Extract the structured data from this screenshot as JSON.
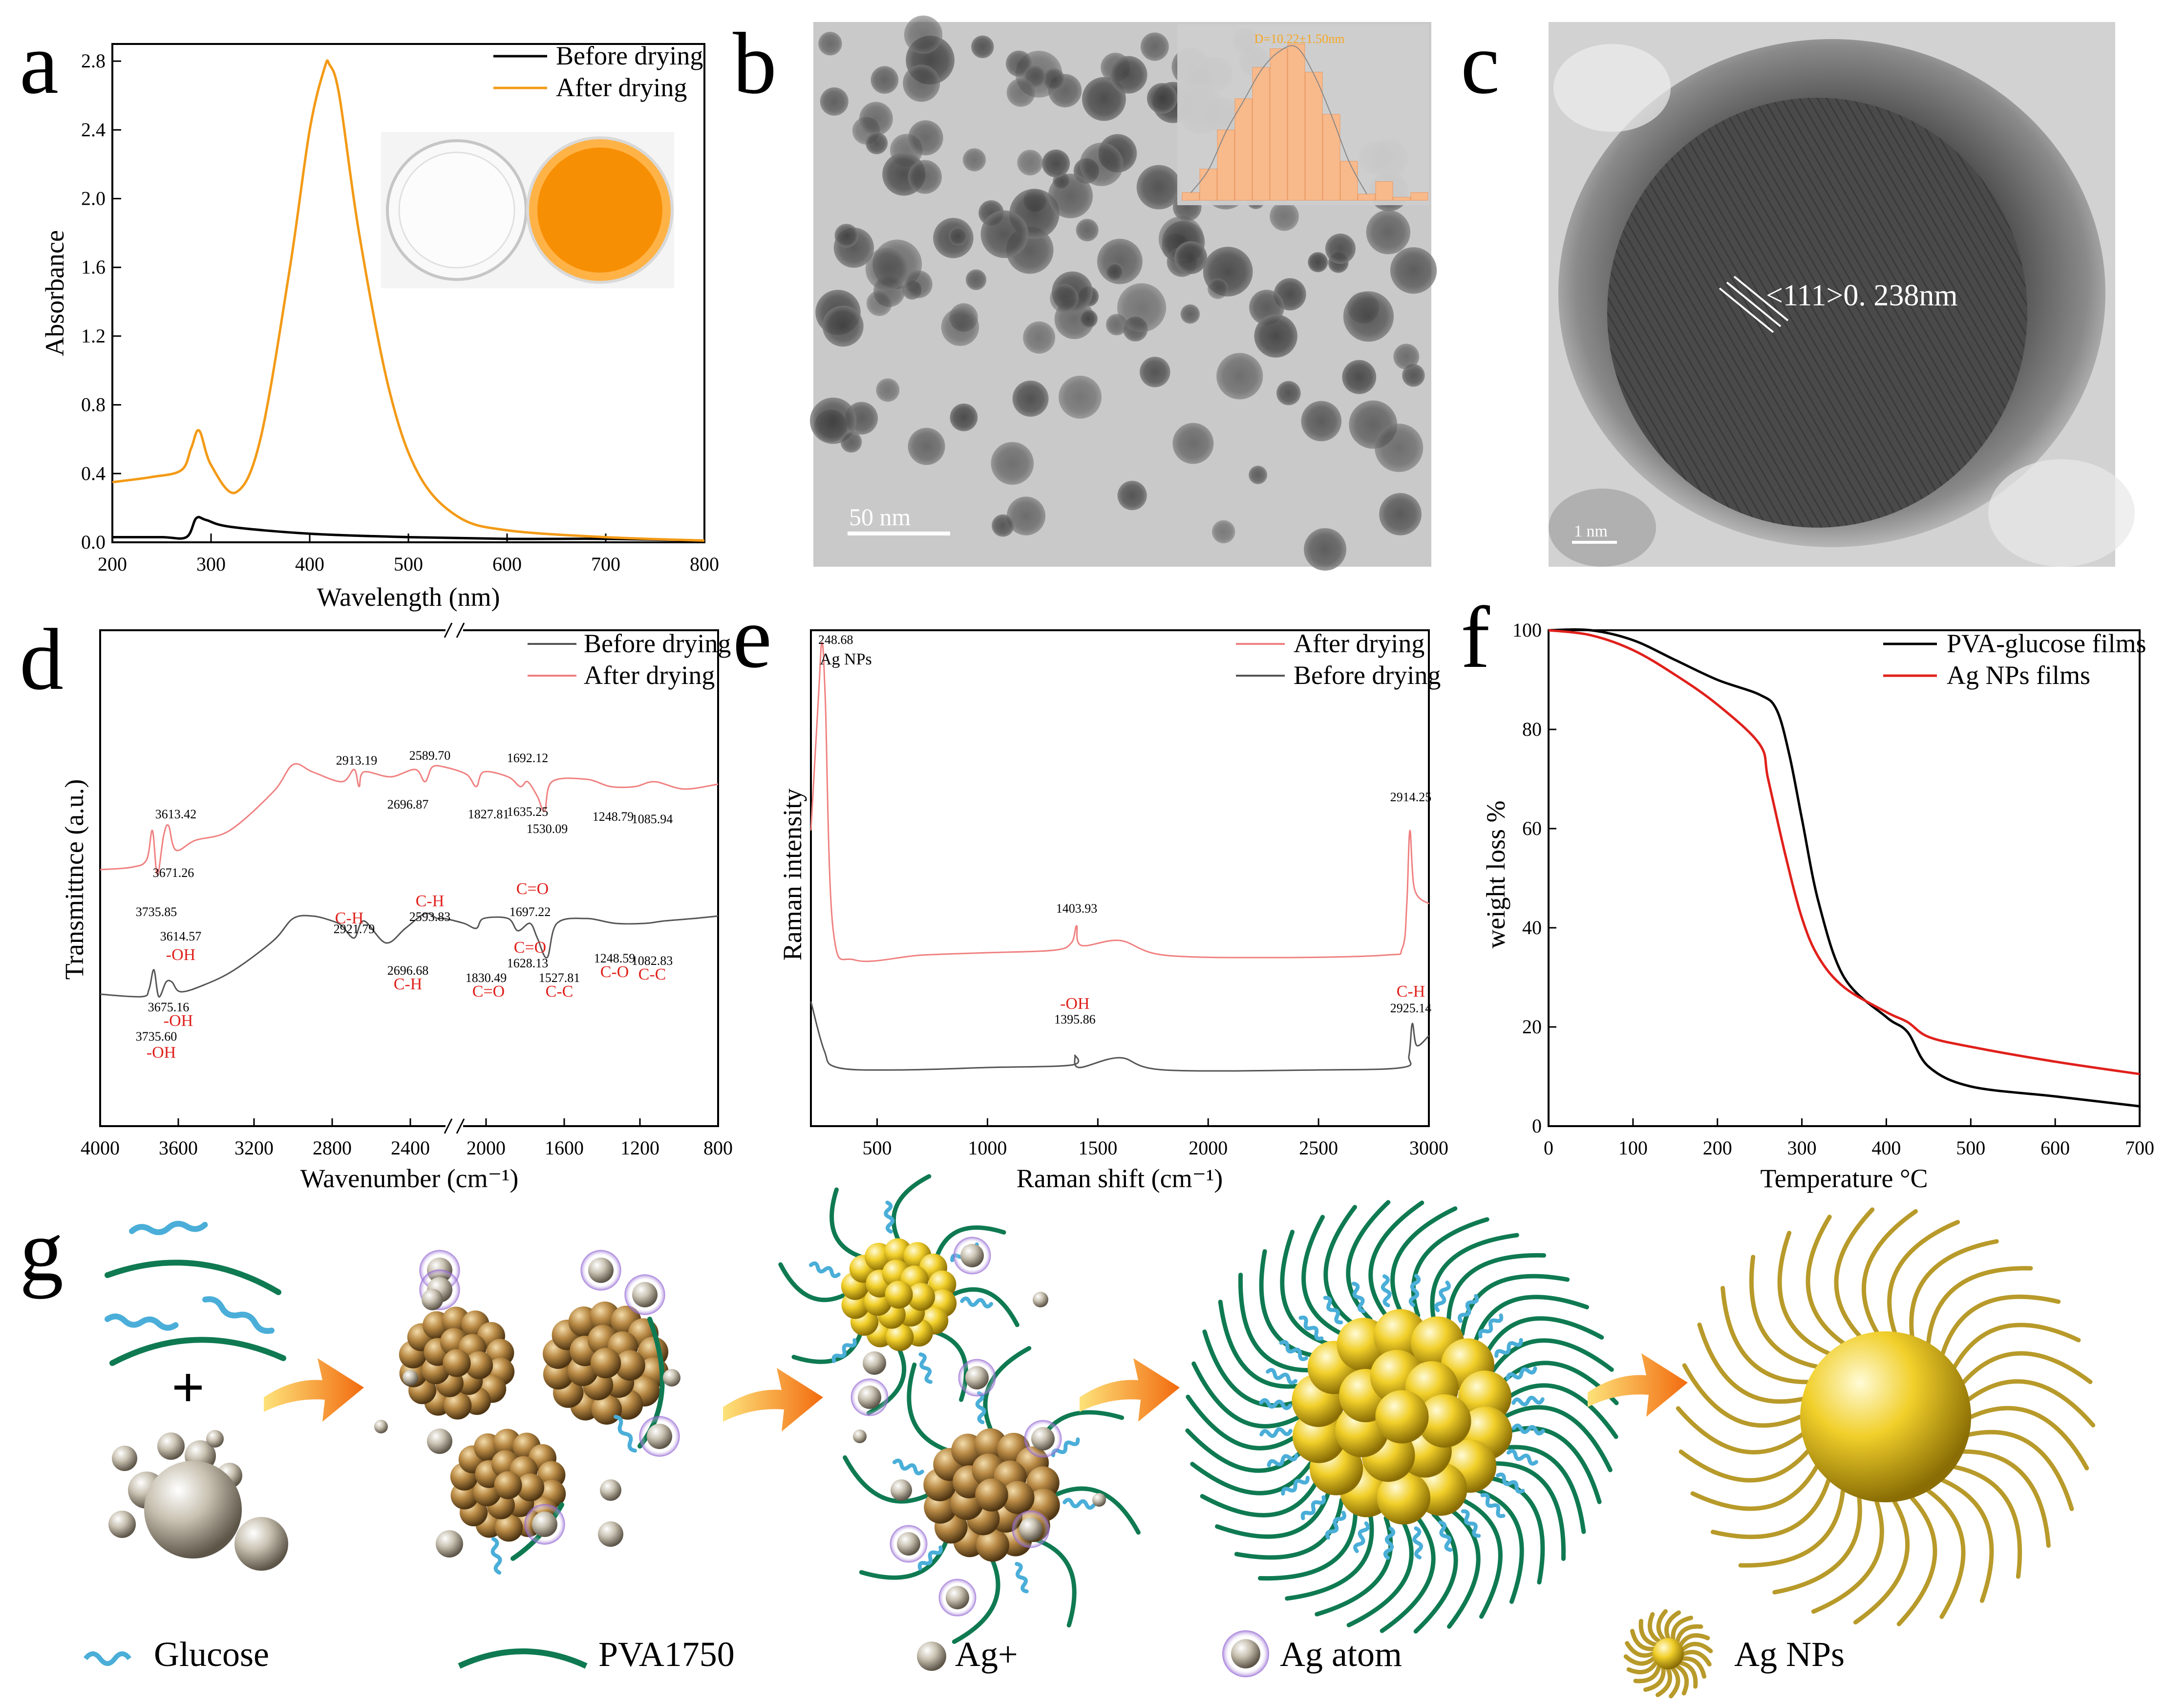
{
  "panel_letters": [
    "a",
    "b",
    "c",
    "d",
    "e",
    "f",
    "g"
  ],
  "colors": {
    "black_series": "#000000",
    "orange_series": "#f39a16",
    "red_series": "#e0201b",
    "pink_series": "#f08080",
    "gray_series": "#555555",
    "histogram": "#f8b98b",
    "annotation_red": "#e0201b",
    "arrow_orange": "#f7941d",
    "glucose": "#4aaed8",
    "pva": "#0f7a52",
    "ag": "#e3c63a"
  },
  "panel_a": {
    "xlabel": "Wavelength (nm)",
    "ylabel": "Absorbance",
    "xticks": [
      "200",
      "300",
      "400",
      "500",
      "600",
      "700",
      "800"
    ],
    "yticks": [
      "0.0",
      "0.4",
      "0.8",
      "1.2",
      "1.6",
      "2.0",
      "2.4",
      "2.8"
    ],
    "legend": [
      "Before drying",
      "After drying"
    ],
    "inset": "photo: clear film dish and orange film dish"
  },
  "panel_b": {
    "scale_bar": "50 nm",
    "inset_text": "D=10.22±1.50nm",
    "histogram": [
      0.05,
      0.2,
      0.45,
      0.65,
      0.85,
      0.97,
      1.0,
      0.82,
      0.55,
      0.25,
      0.04,
      0.12,
      0.02,
      0.05
    ]
  },
  "panel_c": {
    "lattice_label": "<111>0. 238nm",
    "scale_bar": "1 nm"
  },
  "panel_d": {
    "xlabel": "Wavenumber (cm⁻¹)",
    "ylabel": "Transmittnce (a.u.)",
    "xticks": [
      "4000",
      "3600",
      "3200",
      "2800",
      "2400",
      "2000",
      "1600",
      "1200",
      "800"
    ],
    "legend": [
      "Before drying",
      "After drying"
    ],
    "after_peaks": [
      "3613.42",
      "3671.26",
      "3735.85",
      "2913.19",
      "2589.70",
      "2696.87",
      "1692.12",
      "1827.81",
      "1635.25",
      "1530.09",
      "1248.79",
      "1085.94"
    ],
    "before_peaks": [
      "3614.57",
      "3675.16",
      "3735.60",
      "2921.79",
      "2593.83",
      "2696.68",
      "1697.22",
      "1830.49",
      "1628.13",
      "1527.81",
      "1248.59",
      "1082.83"
    ],
    "groups": [
      "-OH",
      "-OH",
      "-OH",
      "C-H",
      "C-H",
      "C-H",
      "C=O",
      "C=O",
      "C=O",
      "C-C",
      "C-O",
      "C-C"
    ]
  },
  "panel_e": {
    "xlabel": "Raman shift (cm⁻¹)",
    "ylabel": "Raman intensity",
    "xticks": [
      "500",
      "1000",
      "1500",
      "2000",
      "2500",
      "3000"
    ],
    "legend": [
      "After drying",
      "Before drying"
    ],
    "peaks": [
      "248.68",
      "Ag NPs",
      "1403.93",
      "2914.25",
      "-OH",
      "1395.86",
      "C-H",
      "2925.14"
    ]
  },
  "panel_f": {
    "xlabel": "Temperature °C",
    "ylabel": "weight loss %",
    "xticks": [
      "0",
      "100",
      "200",
      "300",
      "400",
      "500",
      "600",
      "700"
    ],
    "yticks": [
      "0",
      "20",
      "40",
      "60",
      "80",
      "100"
    ],
    "legend": [
      "PVA-glucose films",
      "Ag NPs films"
    ]
  },
  "panel_g": {
    "legend": [
      "Glucose",
      "PVA1750",
      "Ag+",
      "Ag atom",
      "Ag NPs"
    ],
    "plus": "+"
  },
  "chart_data": [
    {
      "panel": "a",
      "type": "line",
      "xlabel": "Wavelength (nm)",
      "ylabel": "Absorbance",
      "xlim": [
        200,
        800
      ],
      "ylim": [
        0,
        2.9
      ],
      "series": [
        {
          "name": "Before drying",
          "x": [
            200,
            250,
            275,
            285,
            295,
            320,
            400,
            500,
            600,
            700,
            800
          ],
          "y": [
            0.03,
            0.03,
            0.03,
            0.14,
            0.13,
            0.09,
            0.05,
            0.03,
            0.02,
            0.02,
            0.01
          ]
        },
        {
          "name": "After drying",
          "x": [
            200,
            240,
            270,
            280,
            288,
            300,
            325,
            350,
            380,
            400,
            415,
            420,
            430,
            450,
            480,
            510,
            550,
            600,
            700,
            800
          ],
          "y": [
            0.35,
            0.38,
            0.42,
            0.55,
            0.65,
            0.45,
            0.29,
            0.6,
            1.6,
            2.4,
            2.76,
            2.78,
            2.6,
            1.8,
            0.9,
            0.4,
            0.15,
            0.07,
            0.03,
            0.01
          ]
        }
      ]
    },
    {
      "panel": "b",
      "type": "bar",
      "title": "D=10.22±1.50nm",
      "values": [
        0.05,
        0.2,
        0.45,
        0.65,
        0.85,
        0.97,
        1.0,
        0.82,
        0.55,
        0.25,
        0.04,
        0.12,
        0.02,
        0.05
      ]
    },
    {
      "panel": "f",
      "type": "line",
      "xlabel": "Temperature °C",
      "ylabel": "weight loss %",
      "xlim": [
        0,
        700
      ],
      "ylim": [
        0,
        100
      ],
      "series": [
        {
          "name": "PVA-glucose films",
          "x": [
            0,
            50,
            100,
            150,
            200,
            250,
            270,
            285,
            300,
            320,
            350,
            400,
            425,
            450,
            500,
            600,
            700
          ],
          "y": [
            100,
            100,
            98,
            94,
            90,
            87,
            84,
            75,
            62,
            45,
            30,
            22,
            19,
            12,
            8,
            6,
            4
          ]
        },
        {
          "name": "Ag NPs films",
          "x": [
            0,
            50,
            100,
            150,
            200,
            250,
            260,
            280,
            300,
            320,
            350,
            400,
            425,
            450,
            500,
            600,
            700
          ],
          "y": [
            100,
            99,
            96,
            91,
            85,
            77,
            70,
            55,
            42,
            34,
            28,
            23,
            21,
            18,
            16,
            13,
            10.5
          ]
        }
      ]
    }
  ]
}
